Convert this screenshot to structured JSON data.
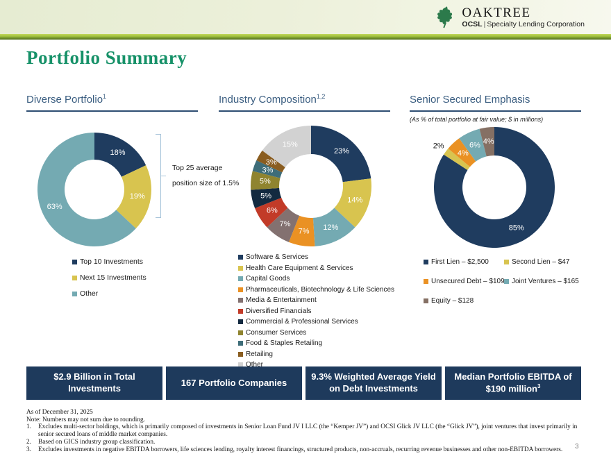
{
  "header": {
    "brand": "OAKTREE",
    "sub_bold": "OCSL",
    "sub_divider": "|",
    "sub_text": "Specialty Lending Corporation"
  },
  "page_title": "Portfolio Summary",
  "colors": {
    "title_green": "#169168",
    "heading_blue": "#3a5d80",
    "underline_navy": "#2e4d72",
    "stat_box_navy": "#1e3a5c",
    "header_bar_green": "#6d8c2a"
  },
  "chart_data": [
    {
      "type": "pie",
      "title": "Diverse Portfolio",
      "title_sup": "1",
      "annotation_line1": "Top 25 average",
      "annotation_line2": "position size of 1.5%",
      "segments": [
        {
          "label": "Top 10 Investments",
          "value": 18,
          "data_label": "18%",
          "color": "#1f3c5f"
        },
        {
          "label": "Next 15 Investments",
          "value": 19,
          "data_label": "19%",
          "color": "#d8c44f"
        },
        {
          "label": "Other",
          "value": 63,
          "data_label": "63%",
          "color": "#74aab2"
        }
      ]
    },
    {
      "type": "pie",
      "title": "Industry Composition",
      "title_sup": "1,2",
      "segments": [
        {
          "label": "Software & Services",
          "value": 23,
          "data_label": "23%",
          "color": "#1f3c5f"
        },
        {
          "label": "Health Care Equipment & Services",
          "value": 14,
          "data_label": "14%",
          "color": "#d8c44f"
        },
        {
          "label": "Capital Goods",
          "value": 12,
          "data_label": "12%",
          "color": "#74aab2"
        },
        {
          "label": "Pharmaceuticals, Biotechnology & Life Sciences",
          "value": 7,
          "data_label": "7%",
          "color": "#ea9123"
        },
        {
          "label": "Media & Entertainment",
          "value": 7,
          "data_label": "7%",
          "color": "#837170"
        },
        {
          "label": "Diversified Financials",
          "value": 6,
          "data_label": "6%",
          "color": "#c23b28"
        },
        {
          "label": "Commercial  & Professional Services",
          "value": 5,
          "data_label": "5%",
          "color": "#132a40"
        },
        {
          "label": "Consumer Services",
          "value": 5,
          "data_label": "5%",
          "color": "#8f842f"
        },
        {
          "label": "Food & Staples Retailing",
          "value": 3,
          "data_label": "3%",
          "color": "#3e6d79"
        },
        {
          "label": "Retailing",
          "value": 3,
          "data_label": "3%",
          "color": "#8a5d20"
        },
        {
          "label": "Other",
          "value": 15,
          "data_label": "15%",
          "color": "#d2d2d2"
        }
      ]
    },
    {
      "type": "pie",
      "title": "Senior Secured Emphasis",
      "title_sup": "",
      "subtitle": "(As % of total portfolio at fair value; $ in millions)",
      "segments": [
        {
          "label": "First Lien – $2,500",
          "value": 85,
          "data_label": "85%",
          "color": "#1f3c5f"
        },
        {
          "label": "Second Lien – $47",
          "value": 2,
          "data_label": "2%",
          "color": "#d8c44f",
          "label_outside": true
        },
        {
          "label": "Unsecured Debt – $109",
          "value": 4,
          "data_label": "4%",
          "color": "#ea9123"
        },
        {
          "label": "Joint Ventures – $165",
          "value": 6,
          "data_label": "6%",
          "color": "#74aab2"
        },
        {
          "label": "Equity – $128",
          "value": 4,
          "data_label": "4%",
          "color": "#857064"
        }
      ]
    }
  ],
  "stat_boxes": [
    {
      "text": "$2.9 Billion in Total Investments",
      "sup": ""
    },
    {
      "text": "167 Portfolio Companies",
      "sup": ""
    },
    {
      "text": "9.3% Weighted Average Yield on Debt Investments",
      "sup": ""
    },
    {
      "text": "Median Portfolio EBITDA of $190 million",
      "sup": "3"
    }
  ],
  "footnotes": {
    "as_of": "As of December 31, 2025",
    "note": "Note: Numbers may not sum due to rounding.",
    "items": [
      {
        "num": "1.",
        "text": "Excludes multi-sector holdings, which is primarily composed of investments in Senior Loan Fund JV I LLC (the “Kemper JV”) and OCSI Glick JV LLC (the “Glick JV”), joint ventures that invest primarily in senior secured loans of middle market companies."
      },
      {
        "num": "2.",
        "text": "Based on GICS industry group classification."
      },
      {
        "num": "3.",
        "text": "Excludes investments in negative EBITDA borrowers, life sciences lending, royalty interest financings, structured products, non-accruals, recurring revenue businesses and other non-EBITDA borrowers."
      }
    ]
  },
  "page_number": "3"
}
